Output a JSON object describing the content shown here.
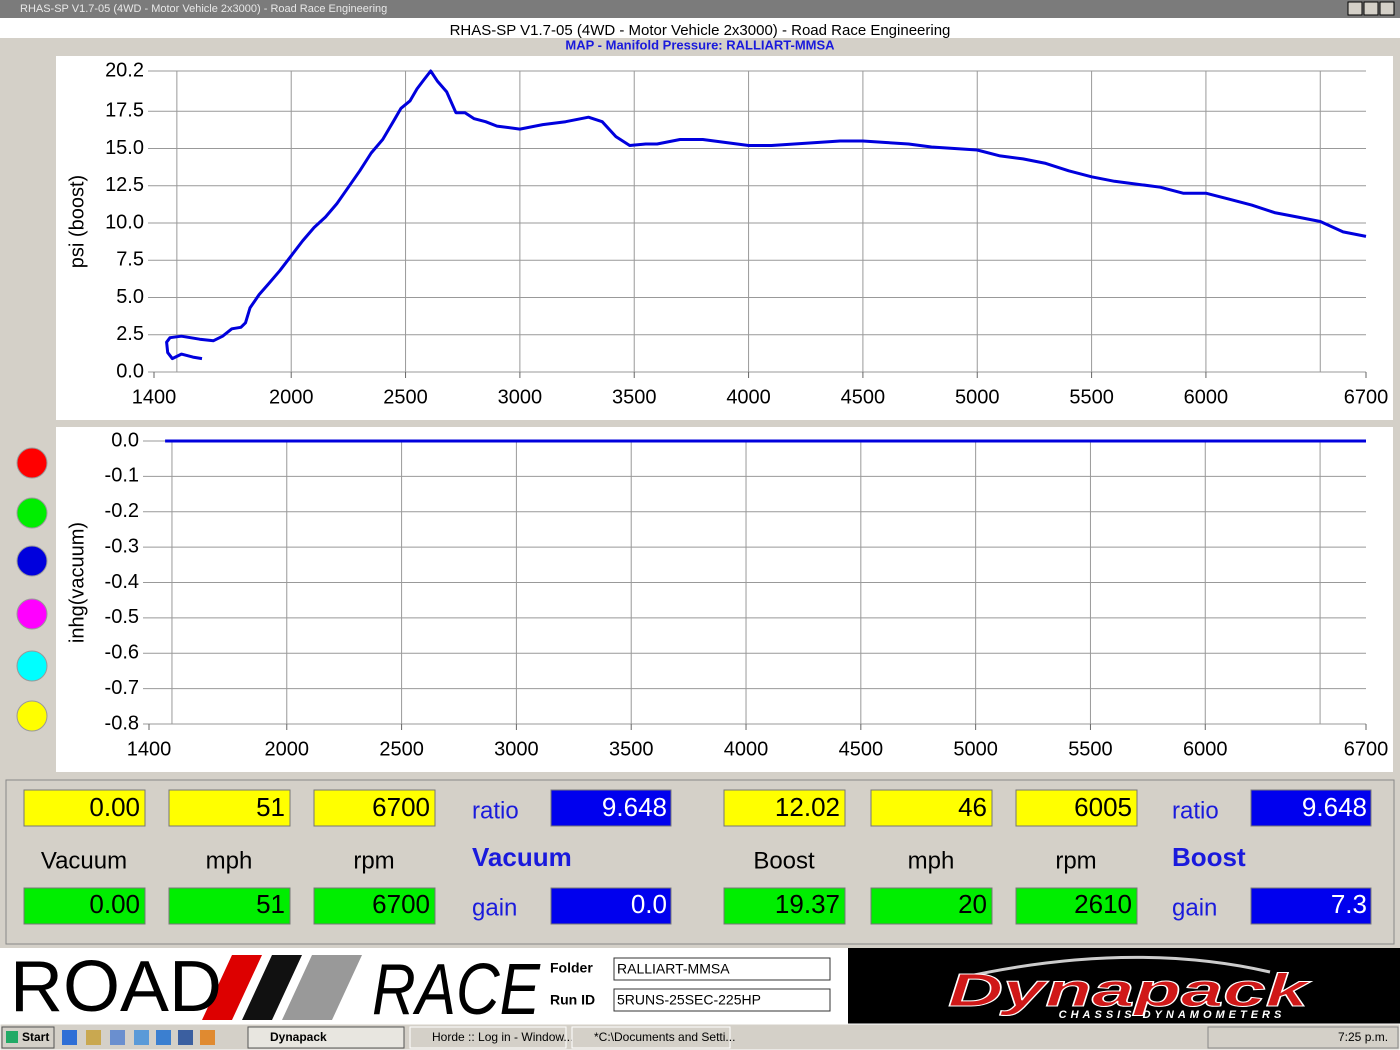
{
  "window": {
    "title": "RHAS-SP V1.7-05   (4WD - Motor Vehicle 2x3000) - Road Race Engineering"
  },
  "header": {
    "title": "RHAS-SP V1.7-05   (4WD - Motor Vehicle 2x3000) - Road Race Engineering",
    "subtitle": "MAP - Manifold Pressure: RALLIART-MMSA"
  },
  "chart_data": [
    {
      "type": "line",
      "y_label": "psi (boost)",
      "grid": true,
      "xlim": [
        1400,
        6700
      ],
      "ylim": [
        0,
        20.2
      ],
      "xticks": [
        1400,
        2000,
        2500,
        3000,
        3500,
        4000,
        4500,
        5000,
        5500,
        6000,
        6700
      ],
      "xgrid": [
        1500,
        2000,
        2500,
        3000,
        3500,
        4000,
        4500,
        5000,
        5500,
        6000,
        6500
      ],
      "yticks": [
        {
          "value": 0,
          "label": "0.0"
        },
        2.5,
        {
          "value": 5,
          "label": "5.0"
        },
        7.5,
        {
          "value": 10,
          "label": "10.0"
        },
        12.5,
        {
          "value": 15,
          "label": "15.0"
        },
        17.5,
        20.2
      ],
      "series": [
        {
          "color": "#0000dd",
          "x": [
            1610,
            1570,
            1520,
            1480,
            1460,
            1455,
            1470,
            1520,
            1600,
            1660,
            1700,
            1740,
            1780,
            1800,
            1820,
            1860,
            1900,
            1950,
            2000,
            2050,
            2100,
            2150,
            2200,
            2250,
            2300,
            2350,
            2400,
            2450,
            2480,
            2520,
            2550,
            2580,
            2610,
            2640,
            2680,
            2720,
            2760,
            2800,
            2850,
            2900,
            3000,
            3100,
            3200,
            3300,
            3360,
            3420,
            3480,
            3550,
            3600,
            3700,
            3800,
            3900,
            4000,
            4100,
            4200,
            4300,
            4400,
            4500,
            4600,
            4700,
            4800,
            4900,
            5000,
            5100,
            5200,
            5300,
            5400,
            5500,
            5600,
            5700,
            5800,
            5900,
            6000,
            6100,
            6200,
            6300,
            6400,
            6500,
            6600,
            6700
          ],
          "values": [
            0.9,
            1.0,
            1.2,
            0.9,
            1.3,
            2.0,
            2.3,
            2.4,
            2.2,
            2.1,
            2.4,
            2.9,
            3.0,
            3.3,
            4.3,
            5.2,
            5.9,
            6.8,
            7.8,
            8.8,
            9.7,
            10.4,
            11.3,
            12.4,
            13.5,
            14.7,
            15.6,
            16.9,
            17.7,
            18.2,
            19.0,
            19.6,
            20.2,
            19.5,
            18.8,
            17.4,
            17.4,
            17.0,
            16.8,
            16.5,
            16.3,
            16.6,
            16.8,
            17.1,
            16.8,
            15.8,
            15.2,
            15.3,
            15.3,
            15.6,
            15.6,
            15.4,
            15.2,
            15.2,
            15.3,
            15.4,
            15.5,
            15.5,
            15.4,
            15.3,
            15.1,
            15.0,
            14.9,
            14.5,
            14.3,
            14.0,
            13.5,
            13.1,
            12.8,
            12.6,
            12.4,
            12.0,
            12.0,
            11.6,
            11.2,
            10.7,
            10.4,
            10.1,
            9.4,
            9.1
          ]
        }
      ]
    },
    {
      "type": "line",
      "y_label": "inhg(vacuum)",
      "grid": true,
      "xlim": [
        1400,
        6700
      ],
      "ylim": [
        -0.8,
        0
      ],
      "xticks": [
        1400,
        2000,
        2500,
        3000,
        3500,
        4000,
        4500,
        5000,
        5500,
        6000,
        6700
      ],
      "xgrid": [
        1500,
        2000,
        2500,
        3000,
        3500,
        4000,
        4500,
        5000,
        5500,
        6000,
        6500
      ],
      "yticks": [
        {
          "value": 0,
          "label": "0.0"
        },
        -0.1,
        -0.2,
        -0.3,
        -0.4,
        -0.5,
        -0.6,
        -0.7,
        -0.8
      ],
      "series": [
        {
          "color": "#0000dd",
          "x": [
            1470,
            6700
          ],
          "values": [
            0,
            0
          ]
        }
      ]
    }
  ],
  "readouts": [
    {
      "top": [
        "0.00",
        "51",
        "6700"
      ],
      "labels": [
        "Vacuum",
        "mph",
        "rpm"
      ],
      "bottom": [
        "0.00",
        "51",
        "6700"
      ],
      "ratio_label": "ratio",
      "ratio": "9.648",
      "mode": "Vacuum",
      "gain_label": "gain",
      "gain": "0.0"
    },
    {
      "top": [
        "12.02",
        "46",
        "6005"
      ],
      "labels": [
        "Boost",
        "mph",
        "rpm"
      ],
      "bottom": [
        "19.37",
        "20",
        "2610"
      ],
      "ratio_label": "ratio",
      "ratio": "9.648",
      "mode": "Boost",
      "gain_label": "gain",
      "gain": "7.3"
    }
  ],
  "footer": {
    "logo_left": [
      "ROAD",
      "RACE"
    ],
    "fields": [
      {
        "label": "Folder",
        "value": "RALLIART-MMSA"
      },
      {
        "label": "Run ID",
        "value": "5RUNS-25SEC-225HP"
      }
    ],
    "logo_right": {
      "name": "Dynapack",
      "tagline": "CHASSIS DYNAMOMETERS"
    }
  },
  "taskbar": {
    "start": "Start",
    "tasks": [
      "Dynapack",
      "Horde :: Log in - Window...",
      "*C:\\Documents and Setti..."
    ],
    "clock": "7:25 p.m."
  }
}
